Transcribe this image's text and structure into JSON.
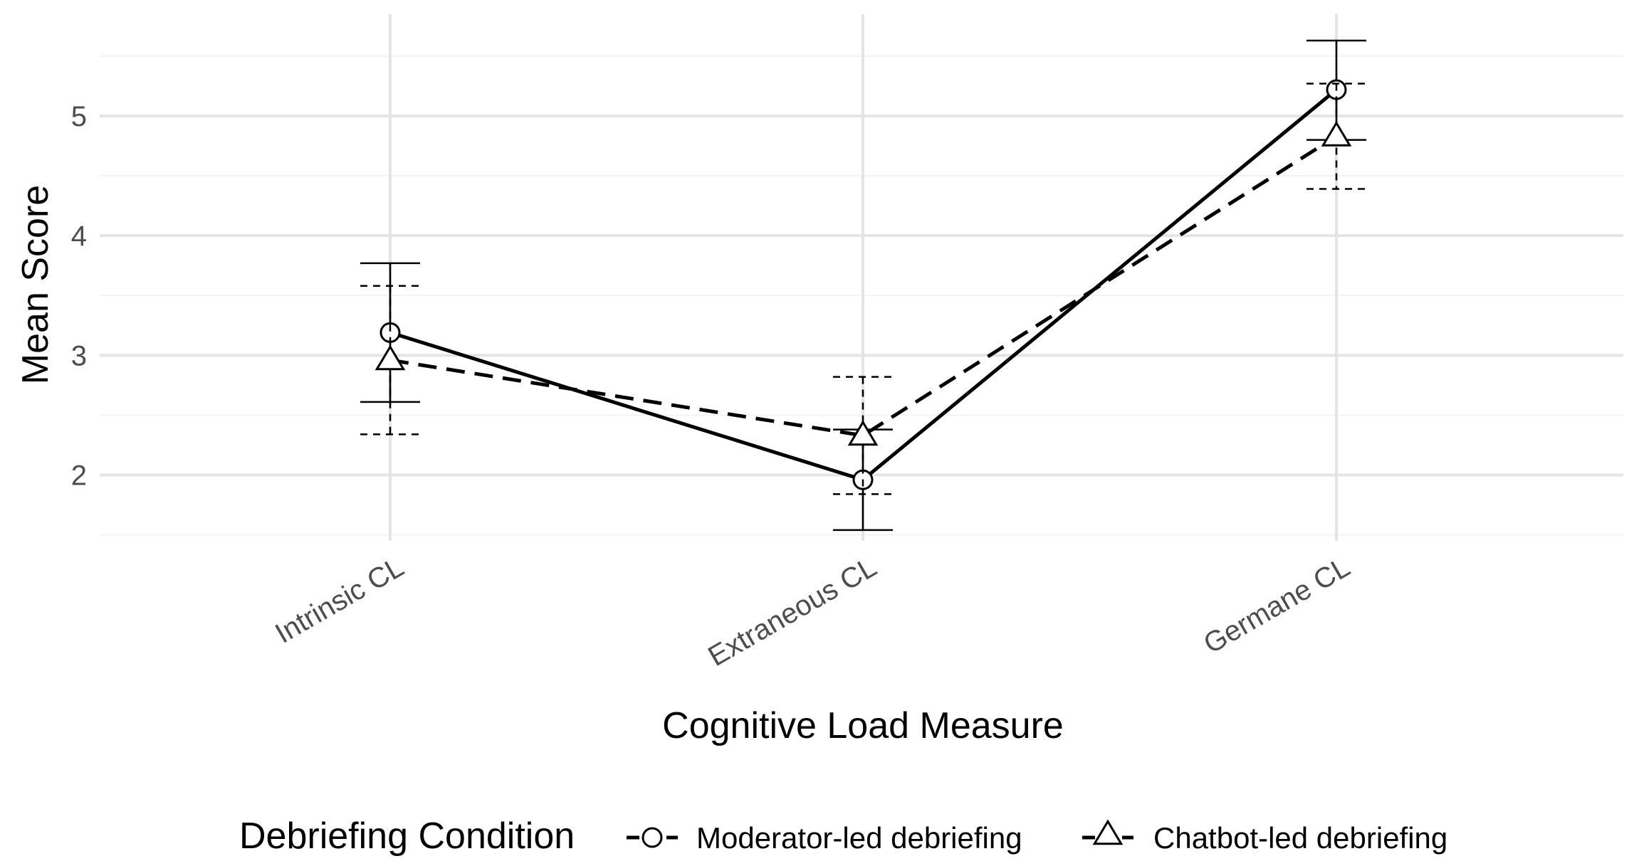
{
  "chart_data": {
    "type": "line",
    "title": "",
    "xlabel": "Cognitive Load Measure",
    "ylabel": "Mean Score",
    "categories": [
      "Intrinsic CL",
      "Extraneous CL",
      "Germane CL"
    ],
    "ylim": [
      1.45,
      5.85
    ],
    "yticks": [
      2,
      3,
      4,
      5
    ],
    "grid": true,
    "legend": {
      "title": "Debriefing Condition",
      "position": "bottom"
    },
    "series": [
      {
        "name": "Moderator-led debriefing",
        "marker": "circle",
        "linetype": "solid",
        "values": [
          3.19,
          1.96,
          5.22
        ],
        "error_lower": [
          2.61,
          1.54,
          4.8
        ],
        "error_upper": [
          3.77,
          2.38,
          5.63
        ]
      },
      {
        "name": "Chatbot-led debriefing",
        "marker": "triangle",
        "linetype": "dashed",
        "values": [
          2.96,
          2.33,
          4.83
        ],
        "error_lower": [
          2.34,
          1.84,
          4.39
        ],
        "error_upper": [
          3.58,
          2.82,
          5.27
        ]
      }
    ]
  }
}
